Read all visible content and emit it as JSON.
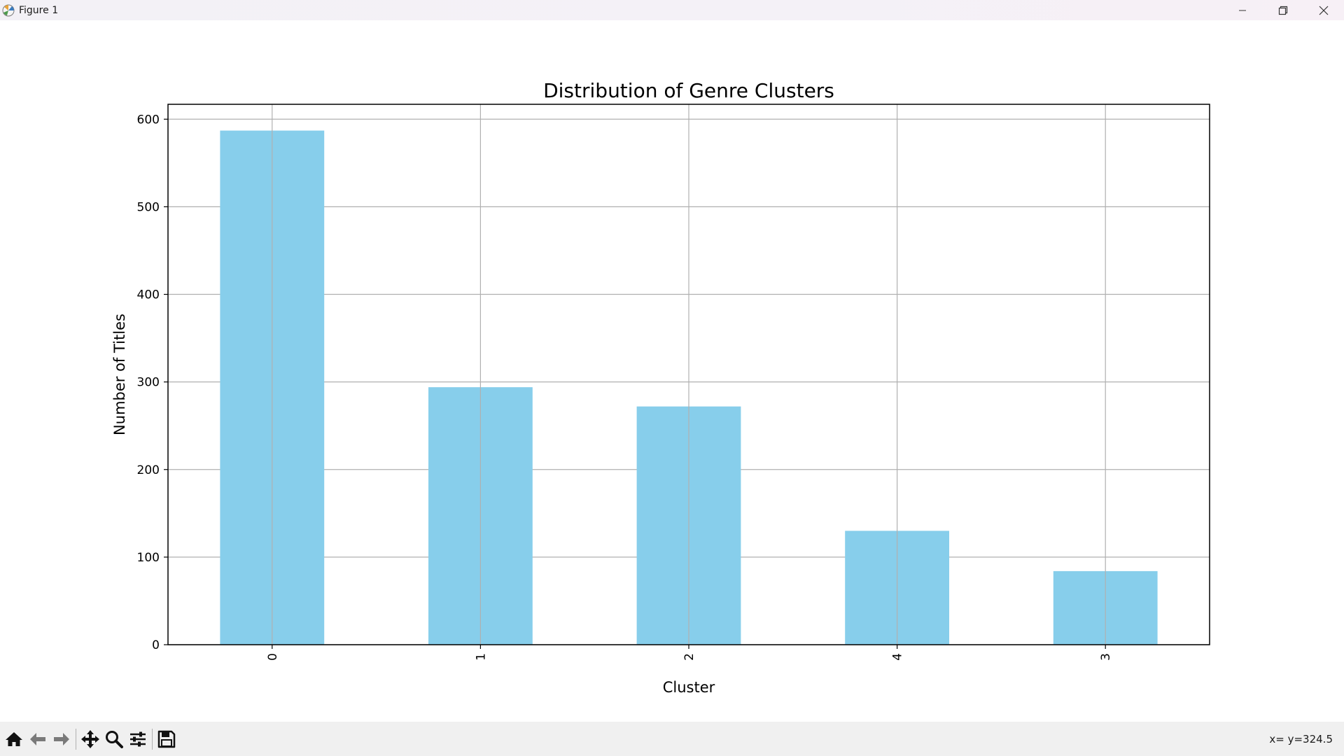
{
  "window": {
    "title": "Figure 1",
    "controls": [
      "minimize-icon",
      "restore-icon",
      "close-icon"
    ]
  },
  "toolbar": {
    "tools": [
      "home-icon",
      "back-arrow-icon",
      "forward-arrow-icon",
      "pan-icon",
      "zoom-icon",
      "configure-subplots-icon",
      "save-icon"
    ],
    "coords_text": "x= y=324.5"
  },
  "colors": {
    "bar": "#87ceeb",
    "grid": "#b0b0b0",
    "axis": "#000000"
  },
  "chart_data": {
    "type": "bar",
    "title": "Distribution of Genre Clusters",
    "xlabel": "Cluster",
    "ylabel": "Number of Titles",
    "categories": [
      "0",
      "1",
      "2",
      "4",
      "3"
    ],
    "values": [
      587,
      294,
      272,
      130,
      84
    ],
    "ylim": [
      0,
      617
    ],
    "yticks": [
      0,
      100,
      200,
      300,
      400,
      500,
      600
    ],
    "xtick_rotation": 90,
    "grid": true,
    "legend": "none"
  }
}
